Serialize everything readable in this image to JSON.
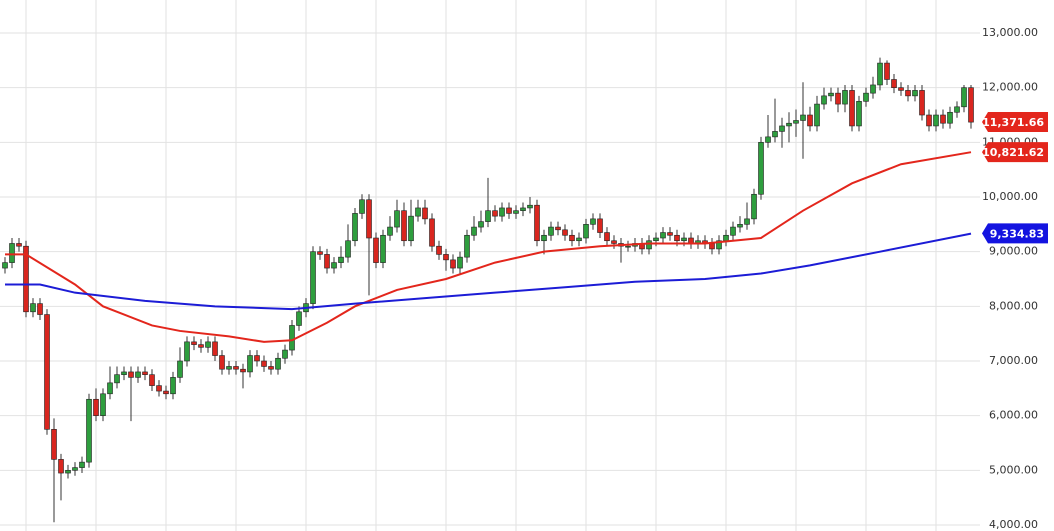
{
  "chart_data": {
    "type": "candlestick",
    "open": [
      8700,
      8800,
      9150,
      9100,
      7900,
      8050,
      7850,
      5750,
      5200,
      4950,
      5000,
      5050,
      5150,
      6300,
      6000,
      6400,
      6600,
      6750,
      6800,
      6700,
      6800,
      6750,
      6550,
      6450,
      6400,
      6700,
      7000,
      7350,
      7300,
      7250,
      7350,
      7100,
      6850,
      6900,
      6850,
      6800,
      7100,
      7000,
      6900,
      6850,
      7050,
      7200,
      7650,
      7900,
      8050,
      9000,
      8950,
      8700,
      8800,
      8900,
      9200,
      9700,
      9950,
      9250,
      8800,
      9300,
      9450,
      9750,
      9200,
      9650,
      9800,
      9600,
      9100,
      8950,
      8850,
      8700,
      8900,
      9300,
      9450,
      9550,
      9750,
      9650,
      9800,
      9700,
      9750,
      9800,
      9850,
      9200,
      9300,
      9450,
      9400,
      9300,
      9200,
      9250,
      9500,
      9600,
      9350,
      9200,
      9150,
      9100,
      9100,
      9150,
      9050,
      9200,
      9250,
      9350,
      9300,
      9200,
      9250,
      9150,
      9200,
      9150,
      9050,
      9200,
      9300,
      9450,
      9500,
      9600,
      10050,
      11000,
      11100,
      11200,
      11300,
      11350,
      11400,
      11500,
      11300,
      11700,
      11850,
      11900,
      11700,
      11950,
      11300,
      11750,
      11900,
      12050,
      12450,
      12150,
      12000,
      11950,
      11850,
      11950,
      11500,
      11300,
      11500,
      11350,
      11550,
      11650,
      12000
    ],
    "high": [
      8900,
      9250,
      9250,
      9200,
      8150,
      8150,
      7950,
      5950,
      5300,
      5100,
      5150,
      5250,
      6400,
      6500,
      6500,
      6900,
      6900,
      6900,
      6900,
      6900,
      6900,
      6850,
      6650,
      6550,
      6800,
      7250,
      7450,
      7450,
      7400,
      7450,
      7450,
      7200,
      7000,
      7000,
      6950,
      7200,
      7200,
      7100,
      7000,
      7150,
      7300,
      7750,
      8000,
      8150,
      9100,
      9100,
      9050,
      8900,
      9100,
      9500,
      9800,
      10050,
      10050,
      9350,
      9400,
      9650,
      9950,
      9900,
      9950,
      9950,
      9950,
      9700,
      9200,
      9050,
      8950,
      9000,
      9400,
      9650,
      9750,
      10350,
      9850,
      9900,
      9900,
      9850,
      9900,
      10000,
      9950,
      9400,
      9550,
      9550,
      9500,
      9400,
      9350,
      9600,
      9700,
      9700,
      9450,
      9300,
      9250,
      9200,
      9250,
      9250,
      9300,
      9350,
      9450,
      9450,
      9400,
      9350,
      9350,
      9300,
      9300,
      9250,
      9300,
      9400,
      9550,
      9650,
      9900,
      10150,
      11100,
      11500,
      11800,
      11450,
      11550,
      11600,
      12100,
      11650,
      11850,
      12000,
      12000,
      12000,
      12050,
      12050,
      11850,
      12000,
      12200,
      12550,
      12500,
      12250,
      12100,
      12050,
      12050,
      12050,
      11600,
      11600,
      11600,
      11650,
      11750,
      12050,
      12050
    ],
    "low": [
      8600,
      8700,
      9000,
      7800,
      7800,
      7750,
      5650,
      4050,
      4450,
      4850,
      4900,
      4950,
      5050,
      5900,
      5900,
      6300,
      6500,
      6650,
      5900,
      6600,
      6650,
      6450,
      6350,
      6300,
      6300,
      6600,
      6900,
      7200,
      7150,
      7150,
      7000,
      6750,
      6750,
      6750,
      6500,
      6700,
      6900,
      6800,
      6750,
      6750,
      6950,
      7100,
      7550,
      7800,
      7950,
      8850,
      8600,
      8600,
      8700,
      8800,
      9100,
      9600,
      8200,
      8700,
      8700,
      9200,
      9350,
      9100,
      9100,
      9550,
      9500,
      9000,
      8850,
      8650,
      8600,
      8600,
      8800,
      9200,
      9350,
      9450,
      9550,
      9550,
      9600,
      9600,
      9650,
      9700,
      9100,
      8950,
      9200,
      9300,
      9200,
      9100,
      9100,
      9150,
      9400,
      9250,
      9100,
      9050,
      8800,
      9000,
      9000,
      8950,
      8950,
      9100,
      9150,
      9200,
      9100,
      9100,
      9050,
      9050,
      9050,
      8950,
      8950,
      9100,
      9200,
      9350,
      9400,
      9500,
      9950,
      10900,
      11000,
      10900,
      11000,
      11100,
      10700,
      11200,
      11200,
      11600,
      11750,
      11550,
      11550,
      11200,
      11200,
      11650,
      11800,
      11950,
      12050,
      11900,
      11850,
      11750,
      11750,
      11400,
      11200,
      11200,
      11250,
      11250,
      11450,
      11550,
      11250
    ],
    "close": [
      8800,
      9150,
      9100,
      7900,
      8050,
      7850,
      5750,
      5200,
      4950,
      5000,
      5050,
      5150,
      6300,
      6000,
      6400,
      6600,
      6750,
      6800,
      6700,
      6800,
      6750,
      6550,
      6450,
      6400,
      6700,
      7000,
      7350,
      7300,
      7250,
      7350,
      7100,
      6850,
      6900,
      6850,
      6800,
      7100,
      7000,
      6900,
      6850,
      7050,
      7200,
      7650,
      7900,
      8050,
      9000,
      8950,
      8700,
      8800,
      8900,
      9200,
      9700,
      9950,
      9250,
      8800,
      9300,
      9450,
      9750,
      9200,
      9650,
      9800,
      9600,
      9100,
      8950,
      8850,
      8700,
      8900,
      9300,
      9450,
      9550,
      9750,
      9650,
      9800,
      9700,
      9750,
      9800,
      9850,
      9200,
      9300,
      9450,
      9400,
      9300,
      9200,
      9250,
      9500,
      9600,
      9350,
      9200,
      9150,
      9100,
      9100,
      9150,
      9050,
      9200,
      9250,
      9350,
      9300,
      9200,
      9250,
      9150,
      9200,
      9150,
      9050,
      9200,
      9300,
      9450,
      9500,
      9600,
      10050,
      11000,
      11100,
      11200,
      11300,
      11350,
      11400,
      11500,
      11300,
      11700,
      11850,
      11900,
      11700,
      11950,
      11300,
      11750,
      11900,
      12050,
      12450,
      12150,
      12000,
      11950,
      11850,
      11950,
      11500,
      11300,
      11500,
      11350,
      11550,
      11650,
      12000,
      11370
    ],
    "up_color": "#2e9e3e",
    "down_color": "#d9261f",
    "series": [
      {
        "color": "#e3261c",
        "x": [
          0,
          3,
          10,
          14,
          21,
          25,
          32,
          37,
          41,
          46,
          50,
          56,
          63,
          70,
          77,
          85,
          92,
          100,
          108,
          114,
          121,
          128,
          138
        ],
        "values": [
          8950,
          8950,
          8400,
          8000,
          7650,
          7550,
          7450,
          7350,
          7380,
          7700,
          8000,
          8300,
          8500,
          8800,
          9000,
          9100,
          9150,
          9150,
          9250,
          9750,
          10250,
          10600,
          10820
        ]
      },
      {
        "color": "#1c1cd6",
        "x": [
          0,
          5,
          10,
          20,
          30,
          41,
          50,
          60,
          70,
          80,
          90,
          100,
          108,
          115,
          125,
          138
        ],
        "values": [
          8400,
          8400,
          8250,
          8100,
          8000,
          7950,
          8050,
          8150,
          8250,
          8350,
          8450,
          8500,
          8600,
          8750,
          9000,
          9330
        ]
      }
    ],
    "ylim": [
      3890,
      13604
    ],
    "yticks": [
      {
        "value": 4000,
        "label": "4,000.00"
      },
      {
        "value": 5000,
        "label": "5,000.00"
      },
      {
        "value": 6000,
        "label": "6,000.00"
      },
      {
        "value": 7000,
        "label": "7,000.00"
      },
      {
        "value": 8000,
        "label": "8,000.00"
      },
      {
        "value": 9000,
        "label": "9,000.00"
      },
      {
        "value": 10000,
        "label": "10,000.00"
      },
      {
        "value": 11000,
        "label": "11,000.00"
      },
      {
        "value": 12000,
        "label": "12,000.00"
      },
      {
        "value": 13000,
        "label": "13,000.00"
      }
    ],
    "grid": true,
    "price_tags": [
      {
        "value": 11371.66,
        "label": "11,371.66",
        "color": "#e3261c"
      },
      {
        "value": 10821.62,
        "label": "10,821.62",
        "color": "#e3261c"
      },
      {
        "value": 9334.83,
        "label": "9,334.83",
        "color": "#1414e0"
      }
    ]
  }
}
